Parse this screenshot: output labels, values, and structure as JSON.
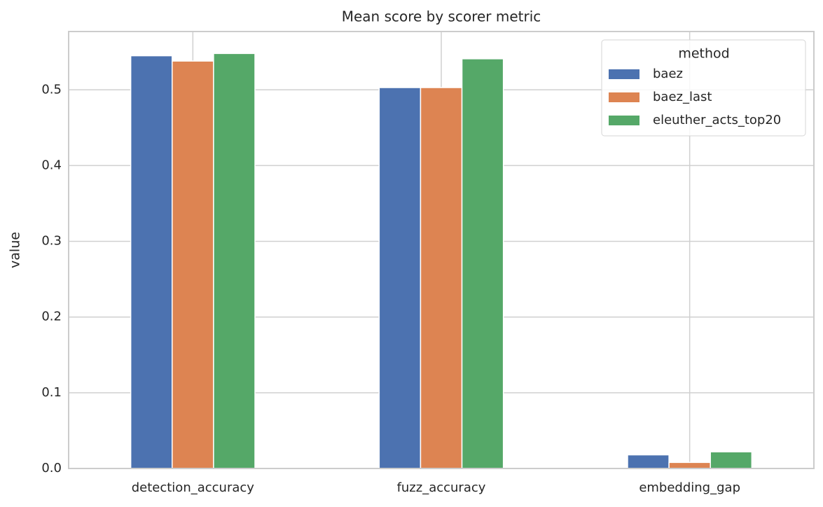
{
  "chart_data": {
    "type": "bar",
    "title": "Mean score by scorer metric",
    "y_label": "value",
    "categories": [
      "detection_accuracy",
      "fuzz_accuracy",
      "embedding_gap"
    ],
    "series": [
      {
        "name": "baez",
        "color": "#4c72b0",
        "values": [
          0.545,
          0.503,
          0.018
        ]
      },
      {
        "name": "baez_last",
        "color": "#dd8452",
        "values": [
          0.538,
          0.503,
          0.008
        ]
      },
      {
        "name": "eleuther_acts_top20",
        "color": "#55a868",
        "values": [
          0.548,
          0.541,
          0.022
        ]
      }
    ],
    "ylim": [
      0,
      0.577
    ],
    "yticks": [
      {
        "value": 0,
        "label": "0.0"
      },
      0.1,
      0.2,
      0.3,
      0.4,
      0.5
    ],
    "grid": true,
    "legend_title": "method",
    "legend_position": "upper right"
  }
}
